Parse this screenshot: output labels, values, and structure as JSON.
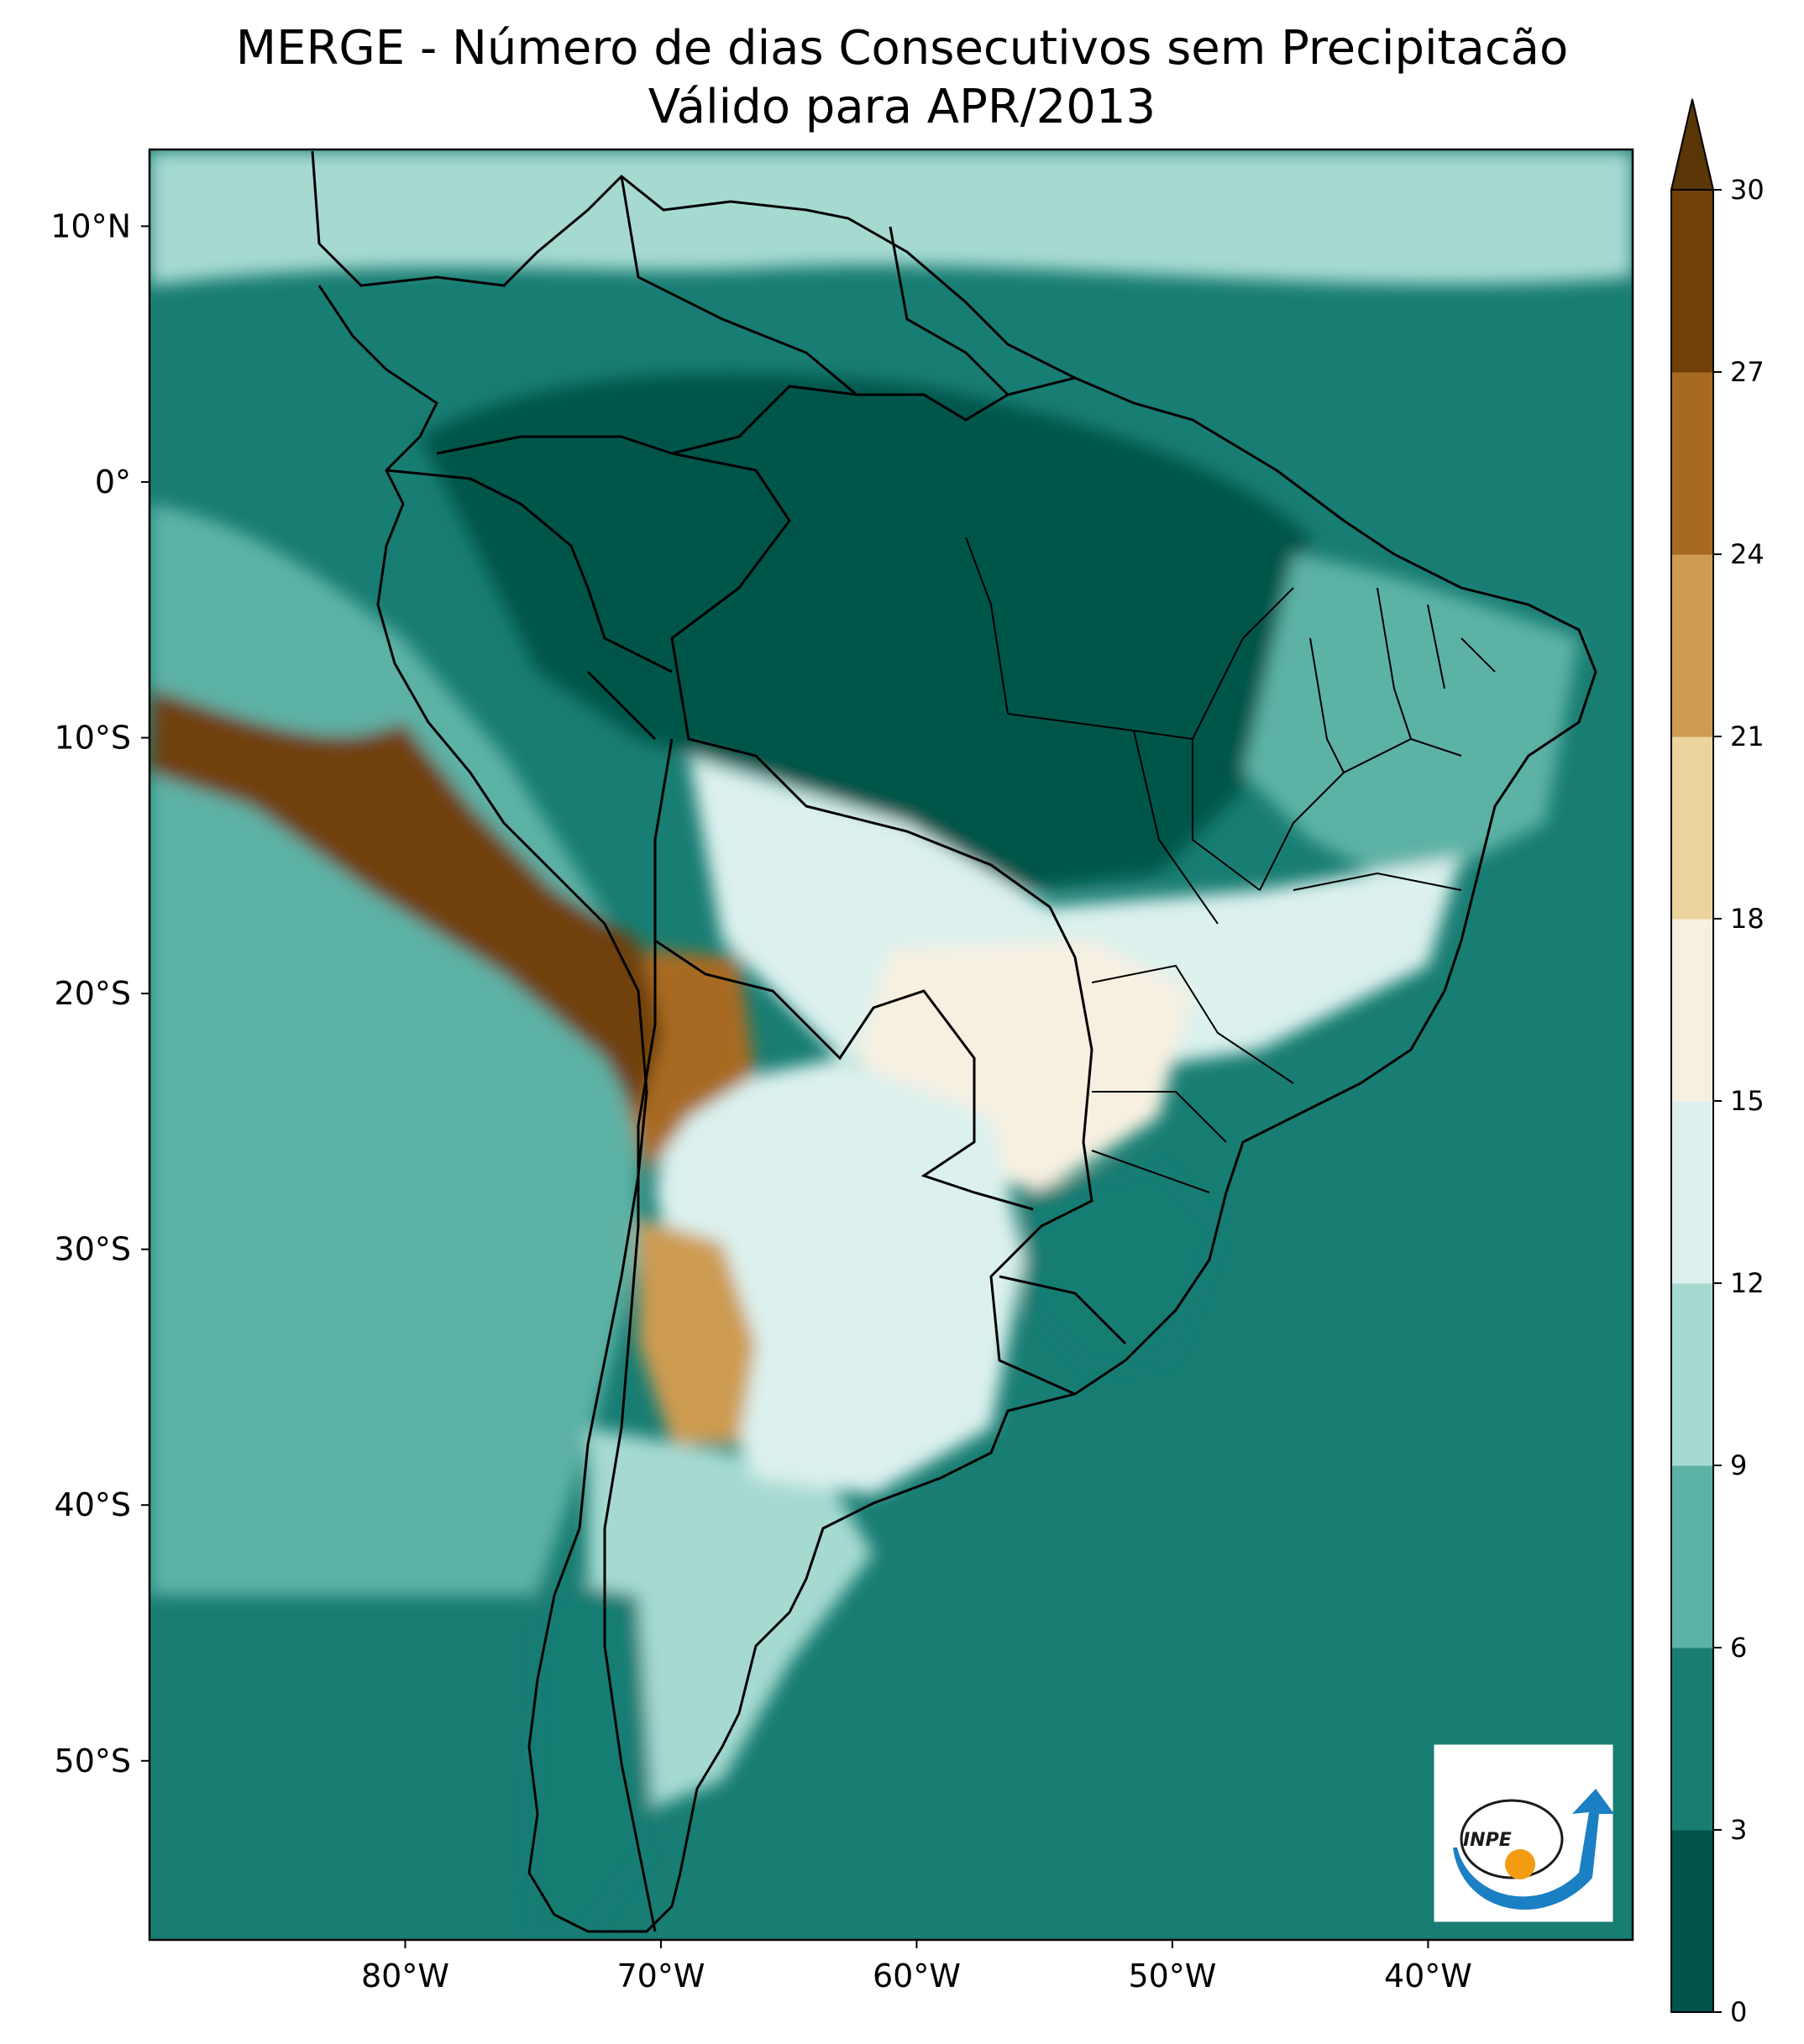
{
  "title": "MERGE - Número de dias Consecutivos sem Precipitacão",
  "subtitle": "Válido para APR/2013",
  "map": {
    "projection": "plate-carree",
    "lon_range": [
      -90,
      -32
    ],
    "lat_range": [
      -57,
      13
    ],
    "lat_ticks": [
      {
        "value": 10,
        "label": "10°N"
      },
      {
        "value": 0,
        "label": "0°"
      },
      {
        "value": -10,
        "label": "10°S"
      },
      {
        "value": -20,
        "label": "20°S"
      },
      {
        "value": -30,
        "label": "30°S"
      },
      {
        "value": -40,
        "label": "40°S"
      },
      {
        "value": -50,
        "label": "50°S"
      }
    ],
    "lon_ticks": [
      {
        "value": -80,
        "label": "80°W"
      },
      {
        "value": -70,
        "label": "70°W"
      },
      {
        "value": -60,
        "label": "60°W"
      },
      {
        "value": -50,
        "label": "50°W"
      },
      {
        "value": -40,
        "label": "40°W"
      }
    ],
    "boundaries": "country-and-state-borders",
    "overlay_logo": "INPE"
  },
  "colorbar": {
    "levels": [
      0,
      3,
      6,
      9,
      12,
      15,
      18,
      21,
      24,
      27,
      30
    ],
    "colors": [
      "#01544a",
      "#187d73",
      "#5db2a6",
      "#a6dad1",
      "#dcf1ee",
      "#f7f0e1",
      "#ebd39c",
      "#cd9b51",
      "#a86a21",
      "#704008"
    ],
    "extend": "max",
    "extend_color": "#5a3505"
  },
  "regions": [
    {
      "name": "amazon-basin",
      "category": 0
    },
    {
      "name": "northeast-brazil",
      "category": 2
    },
    {
      "name": "central-brazil",
      "category": 4
    },
    {
      "name": "southeast-brazil",
      "category": 5
    },
    {
      "name": "chaco-pampas",
      "category": 4
    },
    {
      "name": "peru-coast-and-altiplano",
      "category": 9
    },
    {
      "name": "atacama-andes",
      "category": 8
    },
    {
      "name": "central-andes-argentina",
      "category": 7
    },
    {
      "name": "southern-brazil",
      "category": 1
    },
    {
      "name": "patagonia",
      "category": 3
    },
    {
      "name": "southern-chile-tip",
      "category": 1
    },
    {
      "name": "atlantic-ocean",
      "category": 1
    },
    {
      "name": "pacific-ocean",
      "category": 2
    },
    {
      "name": "caribbean",
      "category": 3
    }
  ]
}
